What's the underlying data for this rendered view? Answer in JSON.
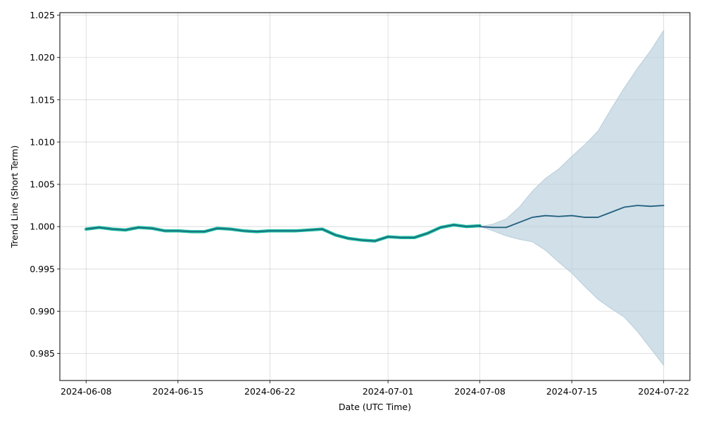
{
  "chart_data": {
    "type": "line",
    "xlabel": "Date (UTC Time)",
    "ylabel": "Trend Line (Short Term)",
    "xlim": [
      "2024-06-06",
      "2024-07-24"
    ],
    "ylim": [
      0.9818,
      1.0253
    ],
    "grid": true,
    "x_ticks": [
      "2024-06-08",
      "2024-06-15",
      "2024-06-22",
      "2024-07-01",
      "2024-07-08",
      "2024-07-15",
      "2024-07-22"
    ],
    "y_ticks": [
      "0.985",
      "0.990",
      "0.995",
      "1.000",
      "1.005",
      "1.010",
      "1.015",
      "1.020",
      "1.025"
    ],
    "colors": {
      "history": "#1abc9c",
      "forecast": "#1f5f7f",
      "band": "#b7cedb"
    },
    "series": [
      {
        "role": "history",
        "x": [
          "2024-06-08",
          "2024-06-09",
          "2024-06-10",
          "2024-06-11",
          "2024-06-12",
          "2024-06-13",
          "2024-06-14",
          "2024-06-15",
          "2024-06-16",
          "2024-06-17",
          "2024-06-18",
          "2024-06-19",
          "2024-06-20",
          "2024-06-21",
          "2024-06-22",
          "2024-06-23",
          "2024-06-24",
          "2024-06-25",
          "2024-06-26",
          "2024-06-27",
          "2024-06-28",
          "2024-06-29",
          "2024-06-30",
          "2024-07-01",
          "2024-07-02",
          "2024-07-03",
          "2024-07-04",
          "2024-07-05",
          "2024-07-06",
          "2024-07-07",
          "2024-07-08"
        ],
        "values": [
          0.9997,
          0.9999,
          0.9997,
          0.9996,
          0.9999,
          0.9998,
          0.9995,
          0.9995,
          0.9994,
          0.9994,
          0.9998,
          0.9997,
          0.9995,
          0.9994,
          0.9995,
          0.9995,
          0.9995,
          0.9996,
          0.9997,
          0.999,
          0.9986,
          0.9984,
          0.9983,
          0.9988,
          0.9987,
          0.9987,
          0.9992,
          0.9999,
          1.0002,
          1.0,
          1.0001
        ]
      },
      {
        "role": "forecast",
        "x": [
          "2024-07-08",
          "2024-07-09",
          "2024-07-10",
          "2024-07-11",
          "2024-07-12",
          "2024-07-13",
          "2024-07-14",
          "2024-07-15",
          "2024-07-16",
          "2024-07-17",
          "2024-07-18",
          "2024-07-19",
          "2024-07-20",
          "2024-07-21",
          "2024-07-22"
        ],
        "values": [
          1.0,
          0.9999,
          0.9999,
          1.0005,
          1.0011,
          1.0013,
          1.0012,
          1.0013,
          1.0011,
          1.0011,
          1.0017,
          1.0023,
          1.0025,
          1.0024,
          1.0025
        ],
        "lower": [
          1.0,
          0.9995,
          0.9989,
          0.9985,
          0.9982,
          0.9972,
          0.9958,
          0.9945,
          0.9929,
          0.9914,
          0.9903,
          0.9893,
          0.9876,
          0.9856,
          0.9836
        ],
        "upper": [
          1.0,
          1.0003,
          1.0009,
          1.0023,
          1.0042,
          1.0057,
          1.0068,
          1.0083,
          1.0097,
          1.0113,
          1.0139,
          1.0164,
          1.0187,
          1.0208,
          1.0232
        ]
      }
    ]
  }
}
